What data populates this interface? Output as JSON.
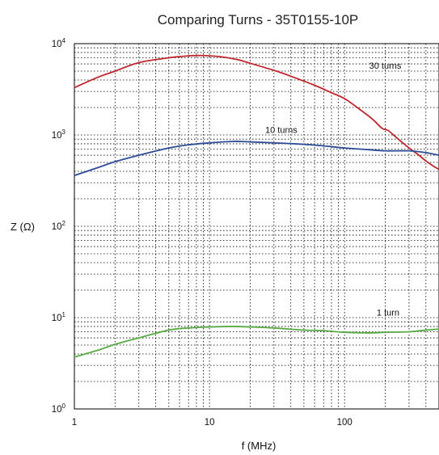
{
  "chart_data": {
    "type": "line",
    "title": "Comparing Turns - 35T0155-10P",
    "xlabel": "f (MHz)",
    "ylabel": "Z (Ω)",
    "xscale": "log",
    "yscale": "log",
    "xlim": [
      1,
      500
    ],
    "ylim": [
      1,
      10000
    ],
    "grid": true,
    "x_ticks": [
      {
        "value": 1,
        "label": "1"
      },
      {
        "value": 10,
        "label": "10"
      },
      {
        "value": 100,
        "label": "100"
      }
    ],
    "y_ticks": [
      {
        "value": 1,
        "base": "10",
        "exp": "0"
      },
      {
        "value": 10,
        "base": "10",
        "exp": "1"
      },
      {
        "value": 100,
        "base": "10",
        "exp": "2"
      },
      {
        "value": 1000,
        "base": "10",
        "exp": "3"
      },
      {
        "value": 10000,
        "base": "10",
        "exp": "4"
      }
    ],
    "series": [
      {
        "name": "30 turns",
        "color": "#c0272d",
        "label_at": [
          200,
          5300
        ],
        "points": [
          [
            1,
            3300
          ],
          [
            1.5,
            4300
          ],
          [
            2,
            5000
          ],
          [
            3,
            6200
          ],
          [
            5,
            7000
          ],
          [
            7,
            7350
          ],
          [
            9,
            7400
          ],
          [
            12,
            7200
          ],
          [
            16,
            6700
          ],
          [
            20,
            6100
          ],
          [
            30,
            5100
          ],
          [
            40,
            4400
          ],
          [
            60,
            3500
          ],
          [
            80,
            2900
          ],
          [
            100,
            2500
          ],
          [
            130,
            1900
          ],
          [
            160,
            1500
          ],
          [
            190,
            1180
          ],
          [
            210,
            1120
          ],
          [
            250,
            900
          ],
          [
            300,
            720
          ],
          [
            350,
            610
          ],
          [
            400,
            520
          ],
          [
            450,
            460
          ],
          [
            500,
            420
          ]
        ]
      },
      {
        "name": "10 turns",
        "color": "#2a4b96",
        "label_at": [
          34,
          1050
        ],
        "points": [
          [
            1,
            360
          ],
          [
            1.5,
            440
          ],
          [
            2,
            510
          ],
          [
            3,
            600
          ],
          [
            5,
            720
          ],
          [
            7,
            780
          ],
          [
            10,
            820
          ],
          [
            15,
            850
          ],
          [
            20,
            840
          ],
          [
            30,
            820
          ],
          [
            50,
            790
          ],
          [
            70,
            760
          ],
          [
            100,
            720
          ],
          [
            150,
            690
          ],
          [
            200,
            670
          ],
          [
            300,
            670
          ],
          [
            400,
            640
          ],
          [
            500,
            600
          ]
        ]
      },
      {
        "name": "1 turn",
        "color": "#5aab45",
        "label_at": [
          210,
          10.5
        ],
        "points": [
          [
            1,
            3.7
          ],
          [
            1.5,
            4.4
          ],
          [
            2,
            5.1
          ],
          [
            3,
            6.0
          ],
          [
            5,
            7.3
          ],
          [
            7,
            7.7
          ],
          [
            10,
            7.9
          ],
          [
            15,
            8.0
          ],
          [
            20,
            7.9
          ],
          [
            30,
            7.7
          ],
          [
            50,
            7.3
          ],
          [
            70,
            7.2
          ],
          [
            100,
            6.9
          ],
          [
            150,
            6.8
          ],
          [
            200,
            6.9
          ],
          [
            300,
            7.0
          ],
          [
            400,
            7.3
          ],
          [
            500,
            7.5
          ]
        ]
      }
    ]
  }
}
